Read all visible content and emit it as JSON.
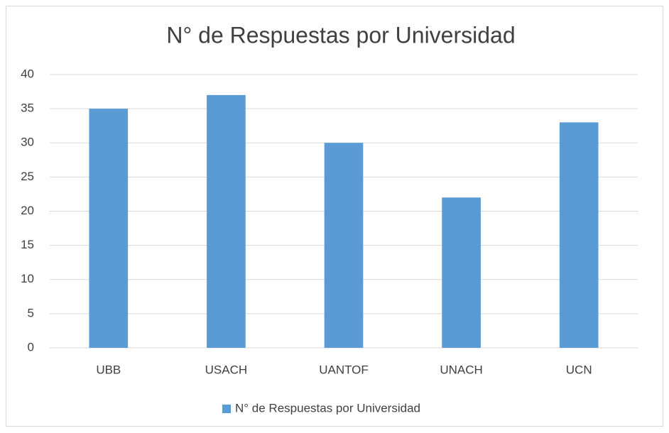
{
  "chart_data": {
    "type": "bar",
    "title": "N° de Respuestas por Universidad",
    "categories": [
      "UBB",
      "USACH",
      "UANTOF",
      "UNACH",
      "UCN"
    ],
    "series": [
      {
        "name": "N° de Respuestas por Universidad",
        "color": "#5b9bd5",
        "values": [
          35,
          37,
          30,
          22,
          33
        ]
      }
    ],
    "ylim": [
      0,
      40
    ],
    "yticks": [
      0,
      5,
      10,
      15,
      20,
      25,
      30,
      35,
      40
    ],
    "grid": true,
    "legend": "bottom"
  }
}
